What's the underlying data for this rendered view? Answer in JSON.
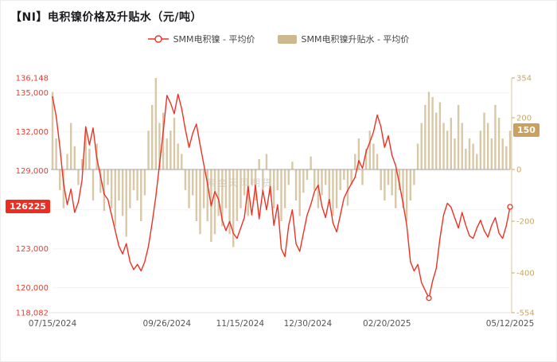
{
  "title": "【NI】电积镍价格及升贴水（元/吨）",
  "legend": {
    "price_label": "SMM电积镍 - 平均价",
    "premium_label": "SMM电积镍升贴水 - 平均价"
  },
  "watermark": "紫金天风期货",
  "badges": {
    "price": "126225",
    "premium": "150"
  },
  "colors": {
    "line_red": "#ee3124",
    "axis_red": "#ee3b2d",
    "bar_tan": "#cdb98d",
    "axis_tan": "#c9a867",
    "badge_red": "#ee2d20",
    "badge_tan": "#c9a05f",
    "zero_line": "#a3a3a3",
    "grid": "#f3f3f3",
    "x_label": "#555555"
  },
  "chart_data": {
    "type": "line+bar combo",
    "title": "【NI】电积镍价格及升贴水（元/吨）",
    "left_axis": {
      "min": 118082,
      "max": 136148,
      "ticks": [
        {
          "value": 136148,
          "label": "136,148"
        },
        {
          "value": 135000,
          "label": "135,000"
        },
        {
          "value": 132000,
          "label": "132,000"
        },
        {
          "value": 129000,
          "label": "129,000"
        },
        {
          "value": 126000,
          "label": "126,000"
        },
        {
          "value": 123000,
          "label": "123,000"
        },
        {
          "value": 120000,
          "label": "120,000"
        },
        {
          "value": 118082,
          "label": "118,082"
        }
      ]
    },
    "right_axis": {
      "min": -554,
      "max": 354,
      "ticks": [
        {
          "value": 354,
          "label": "354"
        },
        {
          "value": 200,
          "label": "200"
        },
        {
          "value": 0,
          "label": "0"
        },
        {
          "value": -200,
          "label": "-200"
        },
        {
          "value": -400,
          "label": "-400"
        },
        {
          "value": -554,
          "label": "-554"
        }
      ]
    },
    "x_ticks": [
      {
        "label": "07/15/2024",
        "pos": 0.0
      },
      {
        "label": "09/26/2024",
        "pos": 0.25
      },
      {
        "label": "11/15/2024",
        "pos": 0.41
      },
      {
        "label": "12/30/2024",
        "pos": 0.558
      },
      {
        "label": "02/20/2025",
        "pos": 0.731
      },
      {
        "label": "05/12/2025",
        "pos": 1.0
      }
    ],
    "last_price": 126225,
    "last_premium": 150,
    "series": [
      {
        "name": "SMM电积镍 - 平均价",
        "type": "line",
        "axis": "left",
        "values": [
          134700,
          133200,
          130800,
          128000,
          126400,
          127600,
          125800,
          126600,
          128300,
          132400,
          131000,
          132300,
          130000,
          128600,
          127200,
          126800,
          125600,
          124400,
          123200,
          122600,
          123400,
          122000,
          121400,
          121800,
          121300,
          122000,
          123200,
          125000,
          127000,
          129500,
          132000,
          134800,
          134200,
          133400,
          134900,
          133800,
          132200,
          130800,
          131900,
          132600,
          131000,
          129500,
          128000,
          126300,
          127400,
          126800,
          125200,
          124400,
          125100,
          124200,
          123800,
          124600,
          125400,
          127800,
          125600,
          127900,
          125300,
          127500,
          126000,
          127800,
          124800,
          126400,
          123000,
          122400,
          124800,
          126000,
          123400,
          122800,
          124200,
          125600,
          126400,
          127400,
          127900,
          126300,
          125400,
          126800,
          125000,
          124300,
          125600,
          126900,
          127500,
          128000,
          128500,
          129800,
          129200,
          130500,
          131200,
          132000,
          133300,
          132400,
          130800,
          131700,
          130200,
          129400,
          128000,
          126500,
          124800,
          122000,
          121300,
          121800,
          120400,
          119800,
          119200,
          120500,
          121500,
          123800,
          125600,
          126500,
          126200,
          125400,
          124600,
          125800,
          124800,
          124000,
          123800,
          124600,
          125200,
          124400,
          123900,
          124800,
          125400,
          124200,
          123800,
          124800,
          126225
        ]
      },
      {
        "name": "SMM电积镍升贴水 - 平均价",
        "type": "bar",
        "axis": "right",
        "values": [
          300,
          120,
          -80,
          -150,
          60,
          180,
          90,
          -60,
          40,
          150,
          80,
          -120,
          100,
          -90,
          -160,
          -60,
          -150,
          -220,
          -120,
          -180,
          -260,
          -150,
          -80,
          -120,
          -200,
          -100,
          150,
          250,
          354,
          180,
          220,
          120,
          150,
          200,
          100,
          60,
          -80,
          -150,
          -100,
          -200,
          -250,
          -150,
          -200,
          -280,
          -250,
          -180,
          -220,
          -150,
          -250,
          -300,
          -200,
          -150,
          -100,
          -180,
          -60,
          -120,
          40,
          -80,
          60,
          -100,
          -150,
          -80,
          -200,
          -150,
          -60,
          30,
          -120,
          -180,
          -90,
          -40,
          50,
          -80,
          -150,
          -100,
          -60,
          -120,
          -180,
          -150,
          -80,
          -40,
          -140,
          -60,
          60,
          120,
          -60,
          80,
          150,
          100,
          60,
          -80,
          -120,
          -60,
          -100,
          -150,
          -80,
          -150,
          -200,
          -120,
          -60,
          100,
          180,
          250,
          300,
          280,
          220,
          260,
          180,
          150,
          200,
          120,
          250,
          180,
          80,
          120,
          100,
          60,
          150,
          220,
          180,
          120,
          250,
          200,
          120,
          90,
          150
        ]
      }
    ]
  }
}
